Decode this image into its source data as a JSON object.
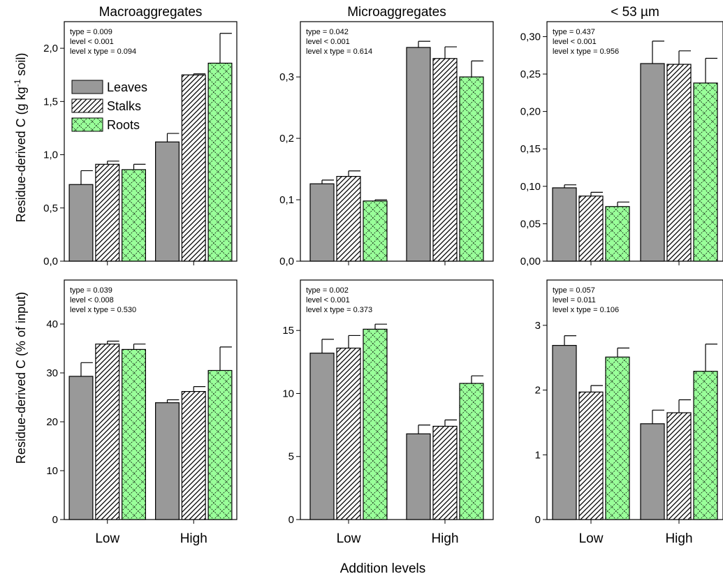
{
  "figure": {
    "xlabel": "Addition levels",
    "ylabel_top": "Residue-derived C (g kg",
    "ylabel_top_sup": "-1",
    "ylabel_top_tail": " soil)",
    "ylabel_bottom": "Residue-derived C (% of input)",
    "categories": [
      "Low",
      "High"
    ]
  },
  "legend": {
    "items": [
      {
        "label": "Leaves",
        "pattern": "solid"
      },
      {
        "label": "Stalks",
        "pattern": "hatch"
      },
      {
        "label": "Roots",
        "pattern": "cross"
      }
    ],
    "colors": {
      "leaves": "#999999",
      "stalks": "#ffffff",
      "roots": "#99ff99"
    }
  },
  "chart_data": [
    {
      "type": "bar",
      "title": "Macroaggregates",
      "categories": [
        "Low",
        "High"
      ],
      "series": [
        {
          "name": "Leaves",
          "values": [
            0.72,
            1.12
          ],
          "errors": [
            0.13,
            0.08
          ]
        },
        {
          "name": "Stalks",
          "values": [
            0.91,
            1.75
          ],
          "errors": [
            0.03,
            0.01
          ]
        },
        {
          "name": "Roots",
          "values": [
            0.86,
            1.86
          ],
          "errors": [
            0.05,
            0.28
          ]
        }
      ],
      "ylim": [
        0,
        2.25
      ],
      "yticks": [
        "0,0",
        "0,5",
        "1,0",
        "1,5",
        "2,0"
      ],
      "ytick_values": [
        0,
        0.5,
        1.0,
        1.5,
        2.0
      ],
      "stats": [
        "type = 0.009",
        "level < 0.001",
        "level x type = 0.094"
      ]
    },
    {
      "type": "bar",
      "title": "Microaggregates",
      "categories": [
        "Low",
        "High"
      ],
      "series": [
        {
          "name": "Leaves",
          "values": [
            0.126,
            0.348
          ],
          "errors": [
            0.006,
            0.01
          ]
        },
        {
          "name": "Stalks",
          "values": [
            0.138,
            0.33
          ],
          "errors": [
            0.009,
            0.019
          ]
        },
        {
          "name": "Roots",
          "values": [
            0.098,
            0.3
          ],
          "errors": [
            0.002,
            0.026
          ]
        }
      ],
      "ylim": [
        0,
        0.39
      ],
      "yticks": [
        "0,0",
        "0,1",
        "0,2",
        "0,3"
      ],
      "ytick_values": [
        0,
        0.1,
        0.2,
        0.3
      ],
      "stats": [
        "type = 0.042",
        "level < 0.001",
        "level x type = 0.614"
      ]
    },
    {
      "type": "bar",
      "title": "< 53 µm",
      "categories": [
        "Low",
        "High"
      ],
      "series": [
        {
          "name": "Leaves",
          "values": [
            0.098,
            0.264
          ],
          "errors": [
            0.004,
            0.03
          ]
        },
        {
          "name": "Stalks",
          "values": [
            0.087,
            0.263
          ],
          "errors": [
            0.005,
            0.018
          ]
        },
        {
          "name": "Roots",
          "values": [
            0.073,
            0.238
          ],
          "errors": [
            0.006,
            0.033
          ]
        }
      ],
      "ylim": [
        0,
        0.32
      ],
      "yticks": [
        "0,00",
        "0,05",
        "0,10",
        "0,15",
        "0,20",
        "0,25",
        "0,30"
      ],
      "ytick_values": [
        0,
        0.05,
        0.1,
        0.15,
        0.2,
        0.25,
        0.3
      ],
      "stats": [
        "type = 0.437",
        "level < 0.001",
        "level x type = 0.956"
      ]
    },
    {
      "type": "bar",
      "title": "",
      "categories": [
        "Low",
        "High"
      ],
      "series": [
        {
          "name": "Leaves",
          "values": [
            29.3,
            23.9
          ],
          "errors": [
            2.8,
            0.6
          ]
        },
        {
          "name": "Stalks",
          "values": [
            35.9,
            26.2
          ],
          "errors": [
            0.6,
            1.0
          ]
        },
        {
          "name": "Roots",
          "values": [
            34.8,
            30.5
          ],
          "errors": [
            1.1,
            4.8
          ]
        }
      ],
      "ylim": [
        0,
        49
      ],
      "yticks": [
        "0",
        "10",
        "20",
        "30",
        "40"
      ],
      "ytick_values": [
        0,
        10,
        20,
        30,
        40
      ],
      "stats": [
        "type = 0.039",
        "level < 0.008",
        "level x type = 0.530"
      ]
    },
    {
      "type": "bar",
      "title": "",
      "categories": [
        "Low",
        "High"
      ],
      "series": [
        {
          "name": "Leaves",
          "values": [
            13.2,
            6.8
          ],
          "errors": [
            1.1,
            0.7
          ]
        },
        {
          "name": "Stalks",
          "values": [
            13.6,
            7.4
          ],
          "errors": [
            1.0,
            0.5
          ]
        },
        {
          "name": "Roots",
          "values": [
            15.1,
            10.8
          ],
          "errors": [
            0.4,
            0.6
          ]
        }
      ],
      "ylim": [
        0,
        19
      ],
      "yticks": [
        "0",
        "5",
        "10",
        "15"
      ],
      "ytick_values": [
        0,
        5,
        10,
        15
      ],
      "stats": [
        "type = 0.002",
        "level < 0.001",
        "level x type = 0.373"
      ]
    },
    {
      "type": "bar",
      "title": "",
      "categories": [
        "Low",
        "High"
      ],
      "series": [
        {
          "name": "Leaves",
          "values": [
            2.69,
            1.48
          ],
          "errors": [
            0.15,
            0.21
          ]
        },
        {
          "name": "Stalks",
          "values": [
            1.97,
            1.65
          ],
          "errors": [
            0.1,
            0.2
          ]
        },
        {
          "name": "Roots",
          "values": [
            2.51,
            2.29
          ],
          "errors": [
            0.14,
            0.42
          ]
        }
      ],
      "ylim": [
        0,
        3.7
      ],
      "yticks": [
        "0",
        "1",
        "2",
        "3"
      ],
      "ytick_values": [
        0,
        1,
        2,
        3
      ],
      "stats": [
        "type = 0.057",
        "level = 0.011",
        "level x type = 0.106"
      ]
    }
  ]
}
